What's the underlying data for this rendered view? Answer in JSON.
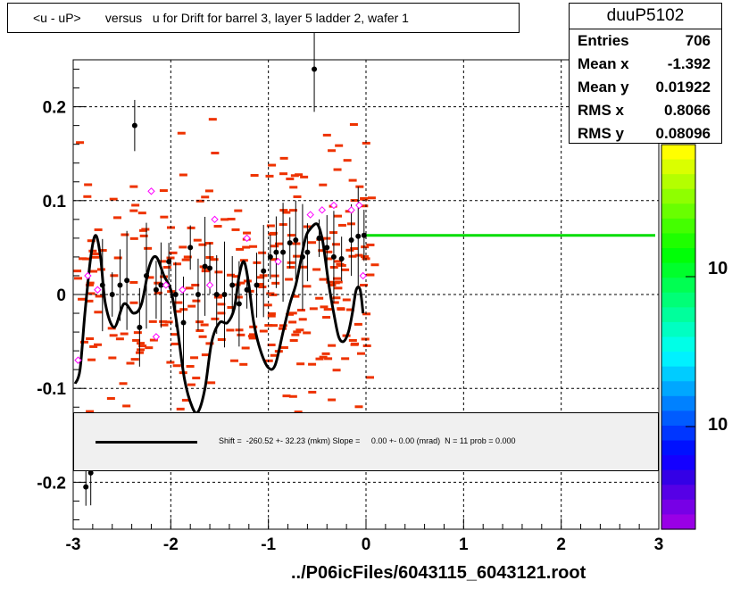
{
  "title": "<u - uP>       versus   u for Drift for barrel 3, layer 5 ladder 2, wafer 1",
  "stats": {
    "name": "duuP5102",
    "rows": [
      {
        "label": "Entries",
        "value": "706"
      },
      {
        "label": "Mean x",
        "value": "-1.392"
      },
      {
        "label": "Mean y",
        "value": "0.01922"
      },
      {
        "label": "RMS x",
        "value": "0.8066"
      },
      {
        "label": "RMS y",
        "value": "0.08096"
      }
    ]
  },
  "fit_text": "Shift =  -260.52 +- 32.23 (mkm) Slope =     0.00 +- 0.00 (mrad)  N = 11 prob = 0.000",
  "xlabel": "../P06icFiles/6043115_6043121.root",
  "palette_labels": [
    "10",
    "10"
  ],
  "colors": {
    "fit_line": "#00dd00",
    "hist_cells": "#ee3300",
    "profile_points": "#000000",
    "open_markers": "#ff00ff"
  },
  "chart_data": {
    "type": "scatter",
    "xlim": [
      -3,
      3
    ],
    "ylim": [
      -0.25,
      0.25
    ],
    "x_ticks": [
      "-3",
      "-2",
      "-1",
      "0",
      "1",
      "2",
      "3"
    ],
    "y_ticks": [
      "-0.2",
      "-0.1",
      "0",
      "0.1",
      "0.2"
    ],
    "grid": true,
    "profile_points": [
      {
        "x": -2.87,
        "y": -0.205
      },
      {
        "x": -2.82,
        "y": -0.19
      },
      {
        "x": -2.7,
        "y": 0.01
      },
      {
        "x": -2.6,
        "y": 0.0
      },
      {
        "x": -2.52,
        "y": 0.01
      },
      {
        "x": -2.45,
        "y": 0.015
      },
      {
        "x": -2.37,
        "y": 0.18
      },
      {
        "x": -2.32,
        "y": -0.035
      },
      {
        "x": -2.25,
        "y": 0.02
      },
      {
        "x": -2.15,
        "y": 0.005
      },
      {
        "x": -2.1,
        "y": 0.01
      },
      {
        "x": -2.02,
        "y": 0.035
      },
      {
        "x": -1.95,
        "y": 0.0
      },
      {
        "x": -1.87,
        "y": -0.03
      },
      {
        "x": -1.8,
        "y": 0.05
      },
      {
        "x": -1.72,
        "y": 0.0
      },
      {
        "x": -1.65,
        "y": 0.03
      },
      {
        "x": -1.6,
        "y": 0.028
      },
      {
        "x": -1.53,
        "y": 0.0
      },
      {
        "x": -1.45,
        "y": 0.0
      },
      {
        "x": -1.37,
        "y": 0.01
      },
      {
        "x": -1.3,
        "y": -0.01
      },
      {
        "x": -1.22,
        "y": 0.005
      },
      {
        "x": -1.12,
        "y": 0.01
      },
      {
        "x": -1.05,
        "y": 0.025
      },
      {
        "x": -0.98,
        "y": 0.04
      },
      {
        "x": -0.92,
        "y": 0.045
      },
      {
        "x": -0.85,
        "y": 0.045
      },
      {
        "x": -0.78,
        "y": 0.055
      },
      {
        "x": -0.72,
        "y": 0.058
      },
      {
        "x": -0.65,
        "y": 0.04
      },
      {
        "x": -0.6,
        "y": 0.045
      },
      {
        "x": -0.53,
        "y": 0.24
      },
      {
        "x": -0.48,
        "y": 0.06
      },
      {
        "x": -0.4,
        "y": 0.05
      },
      {
        "x": -0.33,
        "y": 0.04
      },
      {
        "x": -0.25,
        "y": 0.038
      },
      {
        "x": -0.15,
        "y": 0.058
      },
      {
        "x": -0.08,
        "y": 0.062
      },
      {
        "x": -0.02,
        "y": 0.063
      }
    ],
    "open_markers": [
      {
        "x": -2.95,
        "y": -0.07
      },
      {
        "x": -2.85,
        "y": 0.02
      },
      {
        "x": -2.75,
        "y": 0.005
      },
      {
        "x": -2.2,
        "y": 0.11
      },
      {
        "x": -2.15,
        "y": -0.045
      },
      {
        "x": -2.05,
        "y": 0.01
      },
      {
        "x": -1.88,
        "y": 0.005
      },
      {
        "x": -1.6,
        "y": 0.01
      },
      {
        "x": -1.55,
        "y": 0.08
      },
      {
        "x": -1.22,
        "y": 0.06
      },
      {
        "x": -0.9,
        "y": 0.035
      },
      {
        "x": -0.57,
        "y": 0.085
      },
      {
        "x": -0.45,
        "y": 0.09
      },
      {
        "x": -0.33,
        "y": 0.095
      },
      {
        "x": -0.15,
        "y": 0.09
      },
      {
        "x": -0.07,
        "y": 0.095
      },
      {
        "x": -0.03,
        "y": 0.02
      }
    ],
    "fit_curve": [
      {
        "x": -2.98,
        "y": -0.095
      },
      {
        "x": -2.93,
        "y": -0.08
      },
      {
        "x": -2.88,
        "y": -0.02
      },
      {
        "x": -2.82,
        "y": 0.04
      },
      {
        "x": -2.77,
        "y": 0.063
      },
      {
        "x": -2.72,
        "y": 0.04
      },
      {
        "x": -2.67,
        "y": -0.01
      },
      {
        "x": -2.58,
        "y": -0.035
      },
      {
        "x": -2.48,
        "y": -0.01
      },
      {
        "x": -2.38,
        "y": -0.02
      },
      {
        "x": -2.3,
        "y": -0.01
      },
      {
        "x": -2.22,
        "y": 0.03
      },
      {
        "x": -2.15,
        "y": 0.04
      },
      {
        "x": -2.07,
        "y": 0.02
      },
      {
        "x": -2.0,
        "y": 0.005
      },
      {
        "x": -1.94,
        "y": -0.03
      },
      {
        "x": -1.86,
        "y": -0.09
      },
      {
        "x": -1.78,
        "y": -0.12
      },
      {
        "x": -1.72,
        "y": -0.125
      },
      {
        "x": -1.65,
        "y": -0.1
      },
      {
        "x": -1.58,
        "y": -0.05
      },
      {
        "x": -1.5,
        "y": -0.03
      },
      {
        "x": -1.42,
        "y": -0.03
      },
      {
        "x": -1.35,
        "y": -0.015
      },
      {
        "x": -1.3,
        "y": 0.02
      },
      {
        "x": -1.25,
        "y": 0.035
      },
      {
        "x": -1.2,
        "y": 0.01
      },
      {
        "x": -1.15,
        "y": -0.03
      },
      {
        "x": -1.08,
        "y": -0.06
      },
      {
        "x": -1.0,
        "y": -0.078
      },
      {
        "x": -0.93,
        "y": -0.075
      },
      {
        "x": -0.85,
        "y": -0.04
      },
      {
        "x": -0.78,
        "y": -0.01
      },
      {
        "x": -0.72,
        "y": 0.01
      },
      {
        "x": -0.68,
        "y": 0.03
      },
      {
        "x": -0.62,
        "y": 0.06
      },
      {
        "x": -0.57,
        "y": 0.07
      },
      {
        "x": -0.5,
        "y": 0.075
      },
      {
        "x": -0.45,
        "y": 0.06
      },
      {
        "x": -0.42,
        "y": 0.04
      },
      {
        "x": -0.38,
        "y": 0.01
      },
      {
        "x": -0.33,
        "y": -0.02
      },
      {
        "x": -0.28,
        "y": -0.045
      },
      {
        "x": -0.23,
        "y": -0.05
      },
      {
        "x": -0.18,
        "y": -0.04
      },
      {
        "x": -0.14,
        "y": -0.02
      },
      {
        "x": -0.1,
        "y": 0.005
      },
      {
        "x": -0.06,
        "y": 0.005
      },
      {
        "x": -0.03,
        "y": -0.02
      }
    ],
    "green_line": {
      "x_from": 0.0,
      "x_to": 3.0,
      "y": 0.063
    }
  }
}
